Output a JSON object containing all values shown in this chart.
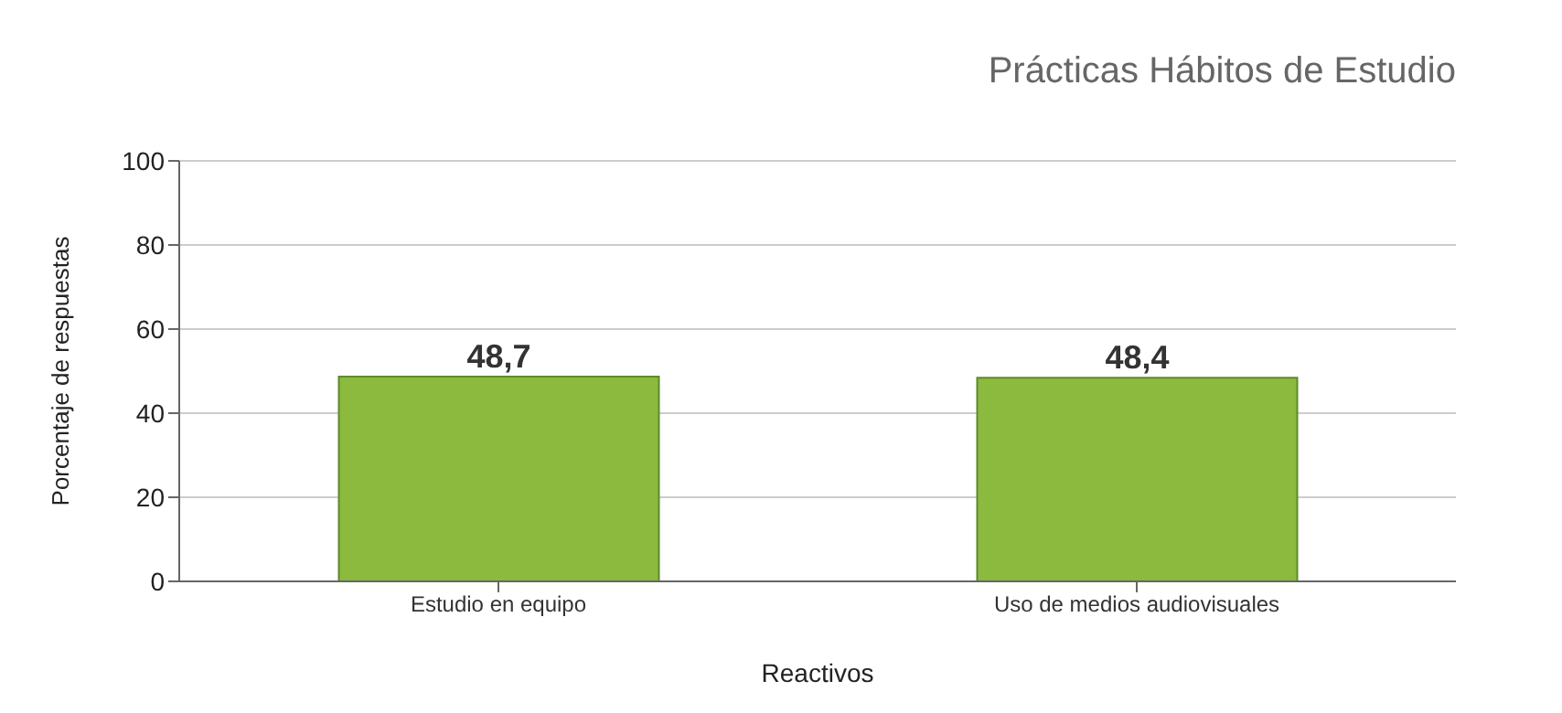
{
  "chart_data": {
    "type": "bar",
    "title": "Prácticas Hábitos de Estudio",
    "xlabel": "Reactivos",
    "ylabel": "Porcentaje de respuestas",
    "categories": [
      "Estudio en equipo",
      "Uso de medios audiovisuales"
    ],
    "values": [
      48.7,
      48.4
    ],
    "value_labels": [
      "48,7",
      "48,4"
    ],
    "color": "#8cba3e",
    "ylim": [
      0,
      100
    ],
    "yticks": [
      0,
      20,
      40,
      60,
      80,
      100
    ],
    "grid": "y"
  }
}
